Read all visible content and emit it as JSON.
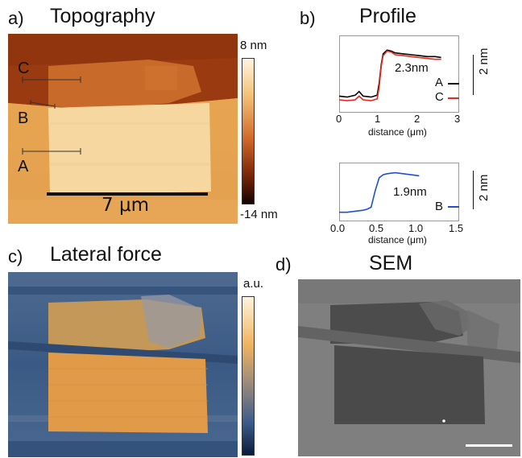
{
  "panels": {
    "a": {
      "letter": "a)",
      "title": "Topography",
      "colorbar_top": "8 nm",
      "colorbar_bottom": "-14 nm",
      "scalebar_label": "7 μm",
      "line_labels": [
        "C",
        "B",
        "A"
      ]
    },
    "b": {
      "letter": "b)",
      "title": "Profile",
      "plot_top": {
        "annotation": "2.3nm",
        "scale_label": "2 nm",
        "xlabel": "distance (μm)",
        "xticks": [
          "0",
          "1",
          "2",
          "3"
        ],
        "legend": [
          "A",
          "C"
        ],
        "legend_colors": [
          "#000000",
          "#e8281e"
        ]
      },
      "plot_bottom": {
        "annotation": "1.9nm",
        "scale_label": "2 nm",
        "xlabel": "distance (μm)",
        "xticks": [
          "0.0",
          "0.5",
          "1.0",
          "1.5"
        ],
        "legend": [
          "B"
        ],
        "legend_colors": [
          "#1f4fd6"
        ]
      }
    },
    "c": {
      "letter": "c)",
      "title": "Lateral force",
      "colorbar_top": "a.u."
    },
    "d": {
      "letter": "d)",
      "title": "SEM"
    }
  },
  "chart_data": [
    {
      "type": "line",
      "xlim": [
        0,
        3
      ],
      "series": [
        {
          "name": "A",
          "x": [
            0,
            0.2,
            0.4,
            0.5,
            0.6,
            0.8,
            0.95,
            1.0,
            1.05,
            1.1,
            1.2,
            1.3,
            1.4,
            1.6,
            1.8,
            2.0,
            2.2,
            2.4,
            2.55
          ],
          "y": [
            0.3,
            0.25,
            0.35,
            0.55,
            0.3,
            0.25,
            0.35,
            1.0,
            2.0,
            2.6,
            2.8,
            2.75,
            2.65,
            2.6,
            2.55,
            2.5,
            2.45,
            2.45,
            2.4
          ]
        },
        {
          "name": "C",
          "x": [
            0,
            0.2,
            0.4,
            0.5,
            0.6,
            0.8,
            0.95,
            1.0,
            1.05,
            1.1,
            1.2,
            1.3,
            1.4,
            1.6,
            1.8,
            2.0,
            2.2,
            2.4,
            2.55
          ],
          "y": [
            0.1,
            0.05,
            0.1,
            0.3,
            0.1,
            0.05,
            0.15,
            0.8,
            1.9,
            2.5,
            2.75,
            2.7,
            2.55,
            2.5,
            2.45,
            2.4,
            2.35,
            2.3,
            2.3
          ]
        }
      ]
    },
    {
      "type": "line",
      "xlim": [
        0,
        1.5
      ],
      "series": [
        {
          "name": "B",
          "x": [
            0,
            0.1,
            0.2,
            0.3,
            0.35,
            0.4,
            0.45,
            0.5,
            0.55,
            0.6,
            0.7,
            0.8,
            0.9,
            1.0
          ],
          "y": [
            0.05,
            0.05,
            0.1,
            0.15,
            0.2,
            0.3,
            1.1,
            1.75,
            1.9,
            1.95,
            2.0,
            1.95,
            1.9,
            1.85
          ]
        }
      ]
    }
  ]
}
